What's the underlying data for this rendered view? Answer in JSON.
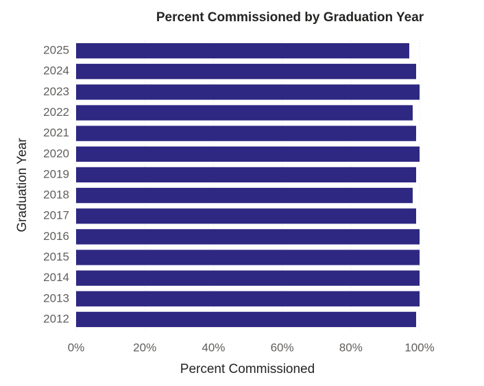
{
  "chart_data": {
    "type": "bar",
    "orientation": "horizontal",
    "title": "Percent Commissioned by Graduation Year",
    "x_label": "Percent Commissioned",
    "y_label": "Graduation Year",
    "categories": [
      "2025",
      "2024",
      "2023",
      "2022",
      "2021",
      "2020",
      "2019",
      "2018",
      "2017",
      "2016",
      "2015",
      "2014",
      "2013",
      "2012"
    ],
    "values": [
      97,
      99,
      100,
      98,
      99,
      100,
      99,
      98,
      99,
      100,
      100,
      100,
      100,
      99
    ],
    "color": "#2e2882",
    "xlim": [
      0,
      100
    ],
    "xticks": [
      {
        "value": 0,
        "label": "0%"
      },
      {
        "value": 20,
        "label": "20%"
      },
      {
        "value": 40,
        "label": "40%"
      },
      {
        "value": 60,
        "label": "60%"
      },
      {
        "value": 80,
        "label": "80%"
      },
      {
        "value": 100,
        "label": "100%"
      }
    ],
    "grid": true
  }
}
